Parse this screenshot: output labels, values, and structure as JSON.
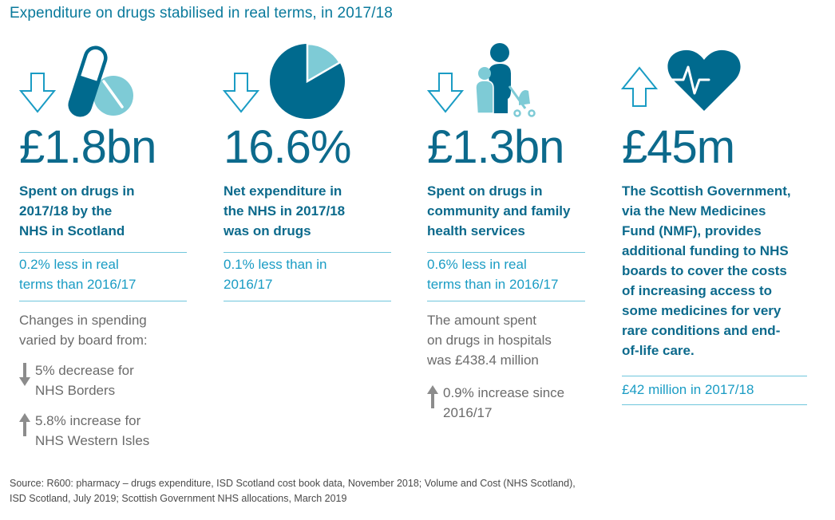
{
  "title": "Expenditure on drugs stabilised in real terms, in 2017/18",
  "colors": {
    "dark_teal": "#006a8e",
    "light_teal": "#7ecbd6",
    "arrow_outline": "#1a9cc4",
    "heading": "#0c6a8c",
    "sub_text": "#1a9cc4",
    "grey_text": "#6b6b6b",
    "rule": "#6fc6dc"
  },
  "panels": [
    {
      "trend": "down",
      "icon": "pill-capsule-tablet-icon",
      "figure": "£1.8bn",
      "heading": [
        "Spent on drugs in",
        "2017/18 by the",
        "NHS in Scotland"
      ],
      "sub": [
        "0.2% less in real",
        "terms than 2016/17"
      ],
      "note": [
        "Changes in spending",
        "varied by board from:"
      ],
      "changes": [
        {
          "direction": "down",
          "lines": [
            "5% decrease for",
            "NHS Borders"
          ]
        },
        {
          "direction": "up",
          "lines": [
            "5.8% increase for",
            "NHS Western Isles"
          ]
        }
      ]
    },
    {
      "trend": "down",
      "icon": "pie-chart-icon",
      "pie_share_percent": 16.6,
      "figure": "16.6%",
      "heading": [
        "Net expenditure in",
        "the NHS in 2017/18",
        "was on drugs"
      ],
      "sub": [
        "0.1% less than in",
        "2016/17"
      ]
    },
    {
      "trend": "down",
      "icon": "family-stroller-icon",
      "figure": "£1.3bn",
      "heading": [
        "Spent on drugs in",
        "community and family",
        "health services"
      ],
      "sub": [
        "0.6% less in real",
        "terms than in 2016/17"
      ],
      "note": [
        "The amount spent",
        "on drugs in hospitals",
        "was £438.4 million"
      ],
      "changes": [
        {
          "direction": "up",
          "lines": [
            "0.9% increase since",
            "2016/17"
          ]
        }
      ]
    },
    {
      "trend": "up",
      "icon": "heart-pulse-icon",
      "figure": "£45m",
      "heading": [
        "The Scottish Government,",
        "via the New Medicines",
        "Fund (NMF), provides",
        "additional funding to NHS",
        "boards to cover the costs",
        "of increasing access to",
        "some medicines for very",
        "rare conditions and end-",
        "of-life care."
      ],
      "sub": [
        "£42 million in 2017/18"
      ]
    }
  ],
  "source": [
    "Source: R600: pharmacy – drugs expenditure, ISD Scotland cost book data, November 2018; Volume and Cost (NHS Scotland),",
    "ISD Scotland, July 2019; Scottish Government NHS allocations, March 2019"
  ]
}
